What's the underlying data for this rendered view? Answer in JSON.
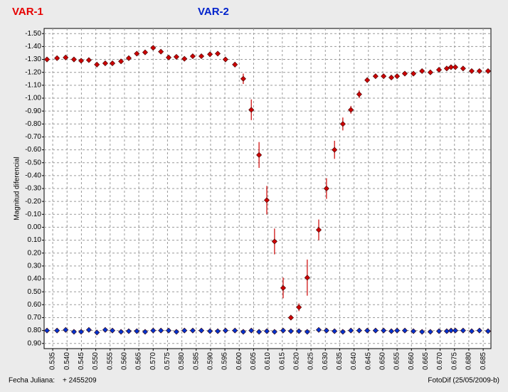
{
  "chart_data": {
    "type": "scatter",
    "y_label": "Magnitud diferencial",
    "x_label": "Fecha Juliana:",
    "x_offset": "+ 2455209",
    "credit": "FotoDif (25/05/2009-b)",
    "y_inverted": true,
    "grid": true,
    "xlim": [
      0.532,
      0.6877
    ],
    "ylim": [
      -1.54,
      0.94
    ],
    "xticks": [
      {
        "value": 0.535,
        "label": "0.535"
      },
      {
        "value": 0.54,
        "label": "0.540"
      },
      {
        "value": 0.545,
        "label": "0.545"
      },
      {
        "value": 0.55,
        "label": "0.550"
      },
      {
        "value": 0.555,
        "label": "0.555"
      },
      {
        "value": 0.56,
        "label": "0.560"
      },
      {
        "value": 0.565,
        "label": "0.565"
      },
      {
        "value": 0.57,
        "label": "0.570"
      },
      {
        "value": 0.575,
        "label": "0.575"
      },
      {
        "value": 0.58,
        "label": "0.580"
      },
      {
        "value": 0.585,
        "label": "0.585"
      },
      {
        "value": 0.59,
        "label": "0.590"
      },
      {
        "value": 0.595,
        "label": "0.595"
      },
      {
        "value": 0.6,
        "label": "0.600"
      },
      {
        "value": 0.605,
        "label": "0.605"
      },
      {
        "value": 0.61,
        "label": "0.610"
      },
      {
        "value": 0.615,
        "label": "0.615"
      },
      {
        "value": 0.62,
        "label": "0.620"
      },
      {
        "value": 0.625,
        "label": "0.625"
      },
      {
        "value": 0.63,
        "label": "0.630"
      },
      {
        "value": 0.635,
        "label": "0.635"
      },
      {
        "value": 0.64,
        "label": "0.640"
      },
      {
        "value": 0.645,
        "label": "0.645"
      },
      {
        "value": 0.65,
        "label": "0.650"
      },
      {
        "value": 0.655,
        "label": "0.655"
      },
      {
        "value": 0.66,
        "label": "0.660"
      },
      {
        "value": 0.665,
        "label": "0.665"
      },
      {
        "value": 0.67,
        "label": "0.670"
      },
      {
        "value": 0.675,
        "label": "0.675"
      },
      {
        "value": 0.68,
        "label": "0.680"
      },
      {
        "value": 0.685,
        "label": "0.685"
      }
    ],
    "yticks": [
      {
        "value": -1.5,
        "label": "-1.50"
      },
      {
        "value": -1.4,
        "label": "-1.40"
      },
      {
        "value": -1.3,
        "label": "-1.30"
      },
      {
        "value": -1.2,
        "label": "-1.20"
      },
      {
        "value": -1.1,
        "label": "-1.10"
      },
      {
        "value": -1.0,
        "label": "-1.00"
      },
      {
        "value": -0.9,
        "label": "-0.90"
      },
      {
        "value": -0.8,
        "label": "-0.80"
      },
      {
        "value": -0.7,
        "label": "-0.70"
      },
      {
        "value": -0.6,
        "label": "-0.60"
      },
      {
        "value": -0.5,
        "label": "-0.50"
      },
      {
        "value": -0.4,
        "label": "-0.40"
      },
      {
        "value": -0.3,
        "label": "-0.30"
      },
      {
        "value": -0.2,
        "label": "-0.20"
      },
      {
        "value": -0.1,
        "label": "-0.10"
      },
      {
        "value": 0,
        "label": "0.00"
      },
      {
        "value": 0.1,
        "label": "0.10"
      },
      {
        "value": 0.2,
        "label": "0.20"
      },
      {
        "value": 0.3,
        "label": "0.30"
      },
      {
        "value": 0.4,
        "label": "0.40"
      },
      {
        "value": 0.5,
        "label": "0.50"
      },
      {
        "value": 0.6,
        "label": "0.60"
      },
      {
        "value": 0.7,
        "label": "0.70"
      },
      {
        "value": 0.8,
        "label": "0.80"
      },
      {
        "value": 0.9,
        "label": "0.90"
      }
    ],
    "x": [
      0.533,
      0.5365,
      0.5395,
      0.5424,
      0.5449,
      0.5476,
      0.5504,
      0.5533,
      0.5558,
      0.5588,
      0.5615,
      0.5643,
      0.5672,
      0.57,
      0.5727,
      0.5754,
      0.5781,
      0.5809,
      0.5838,
      0.5868,
      0.5898,
      0.5925,
      0.5952,
      0.5985,
      0.6014,
      0.6042,
      0.6069,
      0.6096,
      0.6123,
      0.6153,
      0.618,
      0.6208,
      0.6237,
      0.6277,
      0.6304,
      0.6332,
      0.6361,
      0.6389,
      0.6418,
      0.6446,
      0.6475,
      0.6503,
      0.653,
      0.655,
      0.6577,
      0.6607,
      0.6637,
      0.6666,
      0.6696,
      0.6723,
      0.6738,
      0.6753,
      0.678,
      0.681,
      0.6837,
      0.6867
    ],
    "series": [
      {
        "name": "VAR-1",
        "color": "#cc0000",
        "values": [
          -1.3,
          -1.31,
          -1.315,
          -1.3,
          -1.29,
          -1.295,
          -1.26,
          -1.27,
          -1.27,
          -1.285,
          -1.31,
          -1.345,
          -1.355,
          -1.39,
          -1.36,
          -1.315,
          -1.32,
          -1.305,
          -1.325,
          -1.325,
          -1.34,
          -1.345,
          -1.3,
          -1.26,
          -1.15,
          -0.91,
          -0.56,
          -0.21,
          0.11,
          0.47,
          0.7,
          0.62,
          0.39,
          0.02,
          -0.3,
          -0.6,
          -0.8,
          -0.91,
          -1.03,
          -1.14,
          -1.17,
          -1.17,
          -1.16,
          -1.17,
          -1.19,
          -1.19,
          -1.21,
          -1.2,
          -1.22,
          -1.23,
          -1.24,
          -1.24,
          -1.23,
          -1.21,
          -1.21,
          -1.21
        ],
        "errors": [
          0.01,
          0.01,
          0.01,
          0.01,
          0.01,
          0.01,
          0.01,
          0.01,
          0.01,
          0.01,
          0.01,
          0.01,
          0.01,
          0.01,
          0.01,
          0.01,
          0.01,
          0.01,
          0.01,
          0.01,
          0.01,
          0.01,
          0.01,
          0.02,
          0.04,
          0.08,
          0.1,
          0.11,
          0.1,
          0.08,
          0.02,
          0.03,
          0.14,
          0.08,
          0.08,
          0.07,
          0.05,
          0.03,
          0.03,
          0.02,
          0.01,
          0.01,
          0.01,
          0.01,
          0.01,
          0.01,
          0.01,
          0.01,
          0.01,
          0.01,
          0.01,
          0.01,
          0.01,
          0.01,
          0.01,
          0.01
        ]
      },
      {
        "name": "VAR-2",
        "color": "#0033cc",
        "values": [
          0.8,
          0.8,
          0.795,
          0.81,
          0.81,
          0.795,
          0.815,
          0.795,
          0.8,
          0.81,
          0.805,
          0.805,
          0.81,
          0.8,
          0.8,
          0.8,
          0.81,
          0.8,
          0.8,
          0.8,
          0.805,
          0.805,
          0.8,
          0.8,
          0.81,
          0.8,
          0.81,
          0.805,
          0.81,
          0.8,
          0.805,
          0.805,
          0.81,
          0.795,
          0.8,
          0.805,
          0.81,
          0.8,
          0.8,
          0.8,
          0.8,
          0.8,
          0.805,
          0.8,
          0.8,
          0.805,
          0.81,
          0.81,
          0.805,
          0.805,
          0.8,
          0.8,
          0.8,
          0.805,
          0.8,
          0.805
        ]
      }
    ]
  }
}
